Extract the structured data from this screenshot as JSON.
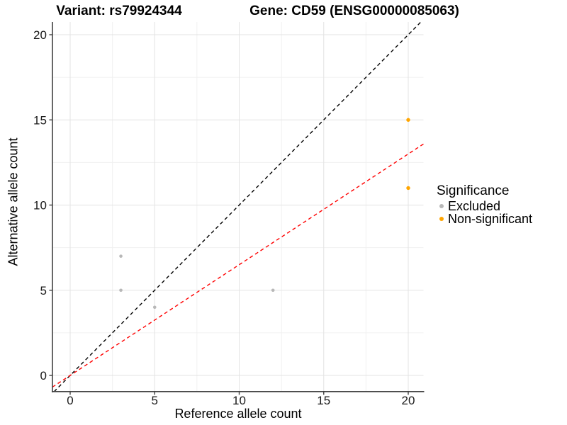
{
  "chart_data": {
    "type": "scatter",
    "title_left": "Variant: rs79924344",
    "title_right": "Gene: CD59 (ENSG00000085063)",
    "xlabel": "Reference allele count",
    "ylabel": "Alternative allele count",
    "xlim": [
      -1.05,
      20.9
    ],
    "ylim": [
      -0.95,
      20.75
    ],
    "x_ticks": [
      0,
      5,
      10,
      15,
      20
    ],
    "y_ticks": [
      0,
      5,
      10,
      15,
      20
    ],
    "x_minor": [
      2.5,
      7.5,
      12.5,
      17.5
    ],
    "y_minor": [
      2.5,
      7.5,
      12.5,
      17.5
    ],
    "grid": true,
    "background": "#ffffff",
    "grid_major_color": "#e3e3e3",
    "grid_minor_color": "#f0f0f0",
    "axis_line_color": "#404040",
    "text_color": "#1a1a1a",
    "series": [
      {
        "name": "Excluded",
        "color": "#b8b8b8",
        "radius": 2.3,
        "points": [
          [
            3,
            7
          ],
          [
            3,
            5
          ],
          [
            5,
            4
          ],
          [
            12,
            5
          ]
        ]
      },
      {
        "name": "Non-significant",
        "color": "#ffa500",
        "radius": 2.7,
        "points": [
          [
            20,
            15
          ],
          [
            20,
            11
          ]
        ]
      }
    ],
    "lines": [
      {
        "name": "identity-line",
        "style": "dashed",
        "color": "#000000",
        "slope": 1,
        "intercept": 0
      },
      {
        "name": "expected-ratio-line",
        "style": "dashed",
        "color": "#ff0000",
        "slope": 0.65,
        "intercept": 0
      }
    ],
    "legend": {
      "title": "Significance",
      "position": "right",
      "entries": [
        "Excluded",
        "Non-significant"
      ]
    }
  }
}
